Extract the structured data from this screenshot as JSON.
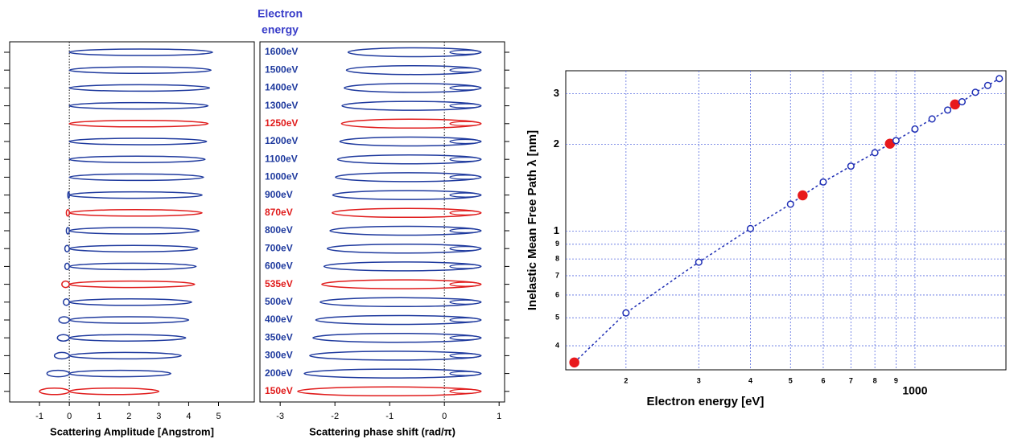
{
  "chart_data": [
    {
      "type": "amplitude",
      "xlabel": "Scattering Amplitude [Angstrom]",
      "xlim": [
        -2,
        6.2
      ],
      "xticks": [
        -1,
        0,
        1,
        2,
        3,
        4,
        5
      ],
      "categories": [
        "1600eV",
        "1500eV",
        "1400eV",
        "1300eV",
        "1250eV",
        "1200eV",
        "1100eV",
        "1000eV",
        "900eV",
        "870eV",
        "800eV",
        "700eV",
        "600eV",
        "535eV",
        "500eV",
        "400eV",
        "350eV",
        "300eV",
        "200eV",
        "150eV"
      ],
      "category_colors": [
        "#1f3a9e",
        "#1f3a9e",
        "#1f3a9e",
        "#1f3a9e",
        "#e01b1b",
        "#1f3a9e",
        "#1f3a9e",
        "#1f3a9e",
        "#1f3a9e",
        "#e01b1b",
        "#1f3a9e",
        "#1f3a9e",
        "#1f3a9e",
        "#e01b1b",
        "#1f3a9e",
        "#1f3a9e",
        "#1f3a9e",
        "#1f3a9e",
        "#1f3a9e",
        "#e01b1b"
      ],
      "low": [
        0,
        0,
        0,
        0,
        0,
        0,
        0,
        0,
        -0.05,
        -0.1,
        -0.1,
        -0.15,
        -0.15,
        -0.25,
        -0.2,
        -0.35,
        -0.4,
        -0.5,
        -0.75,
        -1.0
      ],
      "high": [
        4.8,
        4.75,
        4.7,
        4.65,
        4.65,
        4.6,
        4.55,
        4.5,
        4.45,
        4.45,
        4.35,
        4.3,
        4.25,
        4.2,
        4.1,
        4.0,
        3.9,
        3.75,
        3.4,
        3.0
      ]
    },
    {
      "type": "phase",
      "header": [
        "Electron",
        "energy"
      ],
      "xlabel": "Scattering phase shift (rad/π)",
      "xlim": [
        -3.37,
        1.1
      ],
      "xticks": [
        -3,
        -2,
        -1,
        0,
        1
      ],
      "low": [
        -1.76,
        -1.79,
        -1.83,
        -1.87,
        -1.88,
        -1.91,
        -1.95,
        -1.99,
        -2.04,
        -2.05,
        -2.09,
        -2.14,
        -2.2,
        -2.24,
        -2.27,
        -2.35,
        -2.4,
        -2.46,
        -2.56,
        -2.68
      ],
      "high": [
        0.67,
        0.67,
        0.67,
        0.67,
        0.67,
        0.67,
        0.67,
        0.67,
        0.67,
        0.67,
        0.67,
        0.67,
        0.67,
        0.67,
        0.67,
        0.67,
        0.67,
        0.67,
        0.67,
        0.67
      ]
    },
    {
      "type": "scatter",
      "xlabel": "Electron energy [eV]",
      "ylabel": "Inelastic Mean Free Path λ [nm]",
      "xlog": true,
      "ylog": true,
      "grid": true,
      "xlim": [
        143,
        1660
      ],
      "ylim": [
        0.33,
        3.6
      ],
      "xticks": [
        {
          "value": 200,
          "label": "2"
        },
        {
          "value": 300,
          "label": "3"
        },
        {
          "value": 400,
          "label": "4"
        },
        {
          "value": 500,
          "label": "5"
        },
        {
          "value": 600,
          "label": "6"
        },
        {
          "value": 700,
          "label": "7"
        },
        {
          "value": 800,
          "label": "8"
        },
        {
          "value": 900,
          "label": "9"
        },
        1000
      ],
      "yticks": [
        {
          "value": 0.4,
          "label": "4"
        },
        {
          "value": 0.5,
          "label": "5"
        },
        {
          "value": 0.6,
          "label": "6"
        },
        {
          "value": 0.7,
          "label": "7"
        },
        {
          "value": 0.8,
          "label": "8"
        },
        {
          "value": 0.9,
          "label": "9"
        },
        1,
        2,
        3
      ],
      "x": [
        150,
        200,
        300,
        400,
        500,
        535,
        600,
        700,
        800,
        870,
        900,
        1000,
        1100,
        1200,
        1250,
        1300,
        1400,
        1500,
        1600
      ],
      "values": [
        0.35,
        0.52,
        0.78,
        1.02,
        1.24,
        1.33,
        1.48,
        1.68,
        1.87,
        2.01,
        2.06,
        2.26,
        2.45,
        2.63,
        2.75,
        2.81,
        3.03,
        3.2,
        3.38
      ],
      "highlighted": [
        true,
        false,
        false,
        false,
        false,
        true,
        false,
        false,
        false,
        true,
        false,
        false,
        false,
        false,
        true,
        false,
        false,
        false,
        false
      ],
      "color": "#1f2fb5",
      "highlight_color": "#e8191c",
      "grid_color": "#5a6ee0"
    }
  ]
}
